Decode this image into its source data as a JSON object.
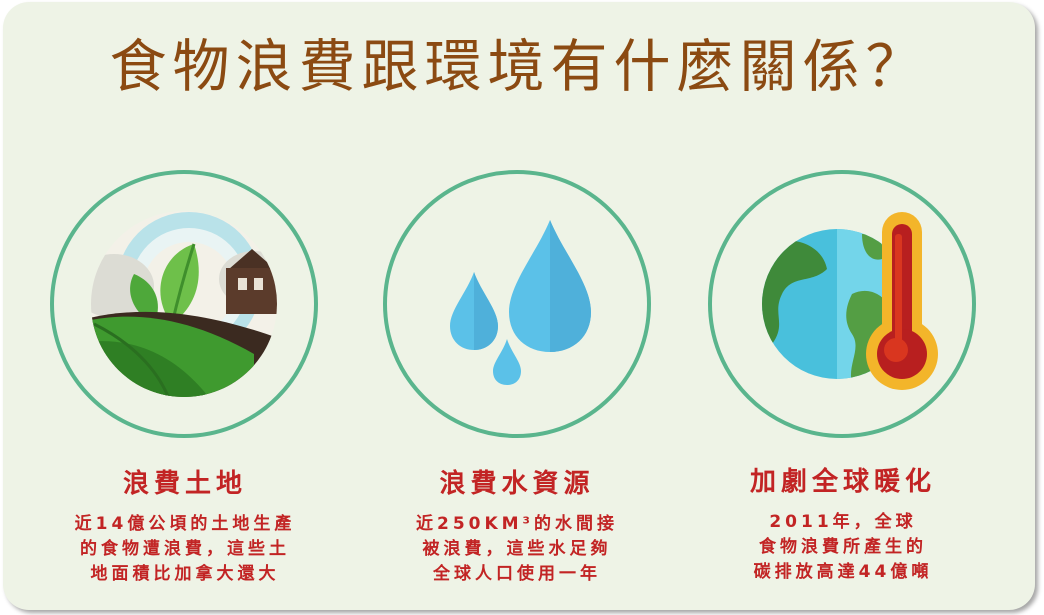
{
  "title": "食物浪費跟環境有什麼關係？",
  "panels": [
    {
      "icon": "farmland-icon",
      "heading": "浪費土地",
      "lines": [
        "近14億公頃的土地生產",
        "的食物遭浪費，這些土",
        "地面積比加拿大還大"
      ]
    },
    {
      "icon": "water-drops-icon",
      "heading": "浪費水資源",
      "lines": [
        "近250KM³的水間接",
        "被浪費，這些水足夠",
        "全球人口使用一年"
      ]
    },
    {
      "icon": "earth-thermometer-icon",
      "heading": "加劇全球暖化",
      "lines": [
        "2011年，全球",
        "食物浪費所產生的",
        "碳排放高達44億噸"
      ]
    }
  ]
}
